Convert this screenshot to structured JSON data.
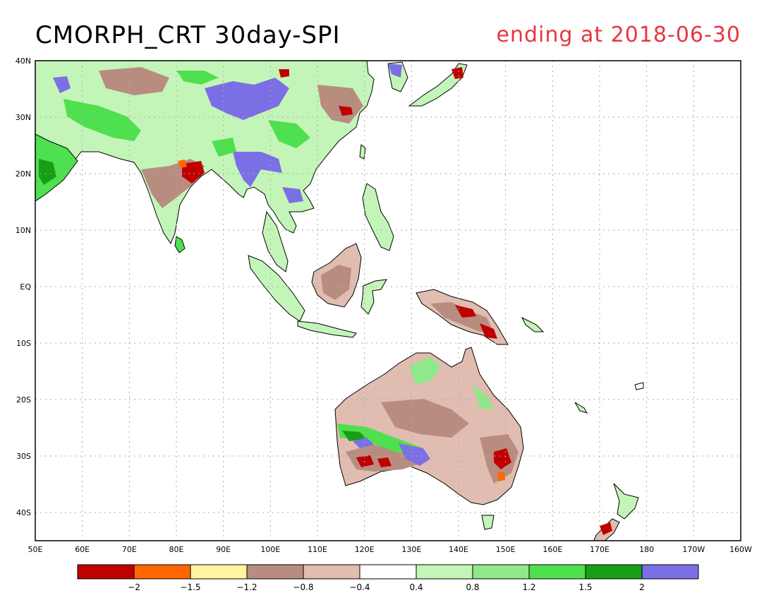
{
  "title": "CMORPH_CRT 30day-SPI",
  "subtitle": "ending at 2018-06-30",
  "map": {
    "lon_range": [
      50,
      200
    ],
    "lat_range": [
      -45,
      40
    ],
    "lat_ticks": [
      {
        "lat": 40,
        "label": "40N"
      },
      {
        "lat": 30,
        "label": "30N"
      },
      {
        "lat": 20,
        "label": "20N"
      },
      {
        "lat": 10,
        "label": "10N"
      },
      {
        "lat": 0,
        "label": "EQ"
      },
      {
        "lat": -10,
        "label": "10S"
      },
      {
        "lat": -20,
        "label": "20S"
      },
      {
        "lat": -30,
        "label": "30S"
      },
      {
        "lat": -40,
        "label": "40S"
      }
    ],
    "lon_ticks": [
      {
        "lon": 50,
        "label": "50E"
      },
      {
        "lon": 60,
        "label": "60E"
      },
      {
        "lon": 70,
        "label": "70E"
      },
      {
        "lon": 80,
        "label": "80E"
      },
      {
        "lon": 90,
        "label": "90E"
      },
      {
        "lon": 100,
        "label": "100E"
      },
      {
        "lon": 110,
        "label": "110E"
      },
      {
        "lon": 120,
        "label": "120E"
      },
      {
        "lon": 130,
        "label": "130E"
      },
      {
        "lon": 140,
        "label": "140E"
      },
      {
        "lon": 150,
        "label": "150E"
      },
      {
        "lon": 160,
        "label": "160E"
      },
      {
        "lon": 170,
        "label": "170E"
      },
      {
        "lon": 180,
        "label": "180"
      },
      {
        "lon": 190,
        "label": "170W"
      },
      {
        "lon": 200,
        "label": "160W"
      }
    ],
    "grid": true
  },
  "colorbar": {
    "colors": [
      "#c00000",
      "#ff6600",
      "#fff5a0",
      "#b88d80",
      "#e0bdb0",
      "#ffffff",
      "#c4f5b8",
      "#8fe88a",
      "#4fe04f",
      "#169f16",
      "#7b6fe6"
    ],
    "labels": [
      "-2",
      "-1.5",
      "-1.2",
      "-0.8",
      "-0.4",
      "0.4",
      "0.8",
      "1.2",
      "1.5",
      "2"
    ]
  }
}
